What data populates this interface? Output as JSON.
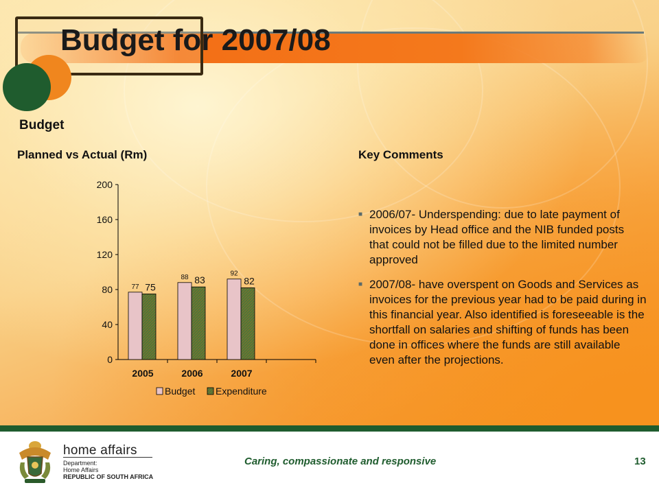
{
  "slide": {
    "title": "Budget for 2007/08",
    "section": "Budget",
    "chart_heading": "Planned vs Actual (Rm)",
    "comments_heading": "Key Comments",
    "comments": [
      "2006/07- Underspending: due to late payment of invoices by Head office and the NIB funded posts that could not be filled due to the limited number approved",
      "2007/08- have overspent on Goods and Services as invoices for the previous year had to be paid during in this financial year. Also identified is foreseeable is the shortfall on salaries and shifting of funds has been done in offices where the funds are still available even after the projections."
    ],
    "bullet_marker": "■"
  },
  "chart_data": {
    "type": "bar",
    "categories": [
      "2005",
      "2006",
      "2007"
    ],
    "series": [
      {
        "name": "Budget",
        "values": [
          77,
          88,
          92
        ],
        "color": "#e8c4c8"
      },
      {
        "name": "Expenditure",
        "values": [
          75,
          83,
          82
        ],
        "color": "#4a7a3a"
      }
    ],
    "ylim": [
      0,
      200
    ],
    "yticks": [
      "0",
      "40",
      "80",
      "120",
      "160",
      "200"
    ],
    "legend": "bottom",
    "grid": false
  },
  "footer": {
    "org_name": "home affairs",
    "org_sub_1": "Department:",
    "org_sub_2": "Home Affairs",
    "org_sub_3": "REPUBLIC OF SOUTH AFRICA",
    "motto": "Caring, compassionate and responsive",
    "page_number": "13"
  },
  "colors": {
    "accent_green": "#1f5c2e",
    "accent_orange": "#f36f16"
  }
}
